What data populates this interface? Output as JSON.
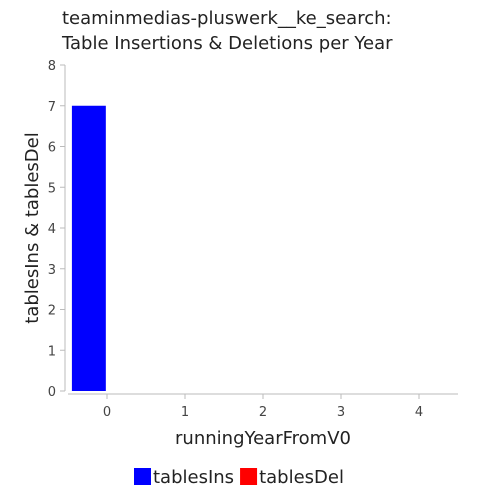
{
  "chart_data": {
    "type": "bar",
    "title": "teaminmedias-pluswerk__ke_search: Table Insertions & Deletions per Year",
    "title_lines": [
      "teaminmedias-pluswerk__ke_search:",
      "Table Insertions & Deletions per Year"
    ],
    "xlabel": "runningYearFromV0",
    "ylabel": "tablesIns & tablesDel",
    "x_ticks": [
      0,
      1,
      2,
      3,
      4
    ],
    "y_ticks": [
      0,
      1,
      2,
      3,
      4,
      5,
      6,
      7,
      8
    ],
    "xlim": [
      -0.5,
      4.5
    ],
    "ylim": [
      0,
      8
    ],
    "categories": [
      0
    ],
    "series": [
      {
        "name": "tablesIns",
        "values": [
          7
        ],
        "color": "#0000ff"
      },
      {
        "name": "tablesDel",
        "values": [
          0
        ],
        "color": "#ff0000"
      }
    ],
    "grid": false,
    "legend_position": "bottom"
  }
}
